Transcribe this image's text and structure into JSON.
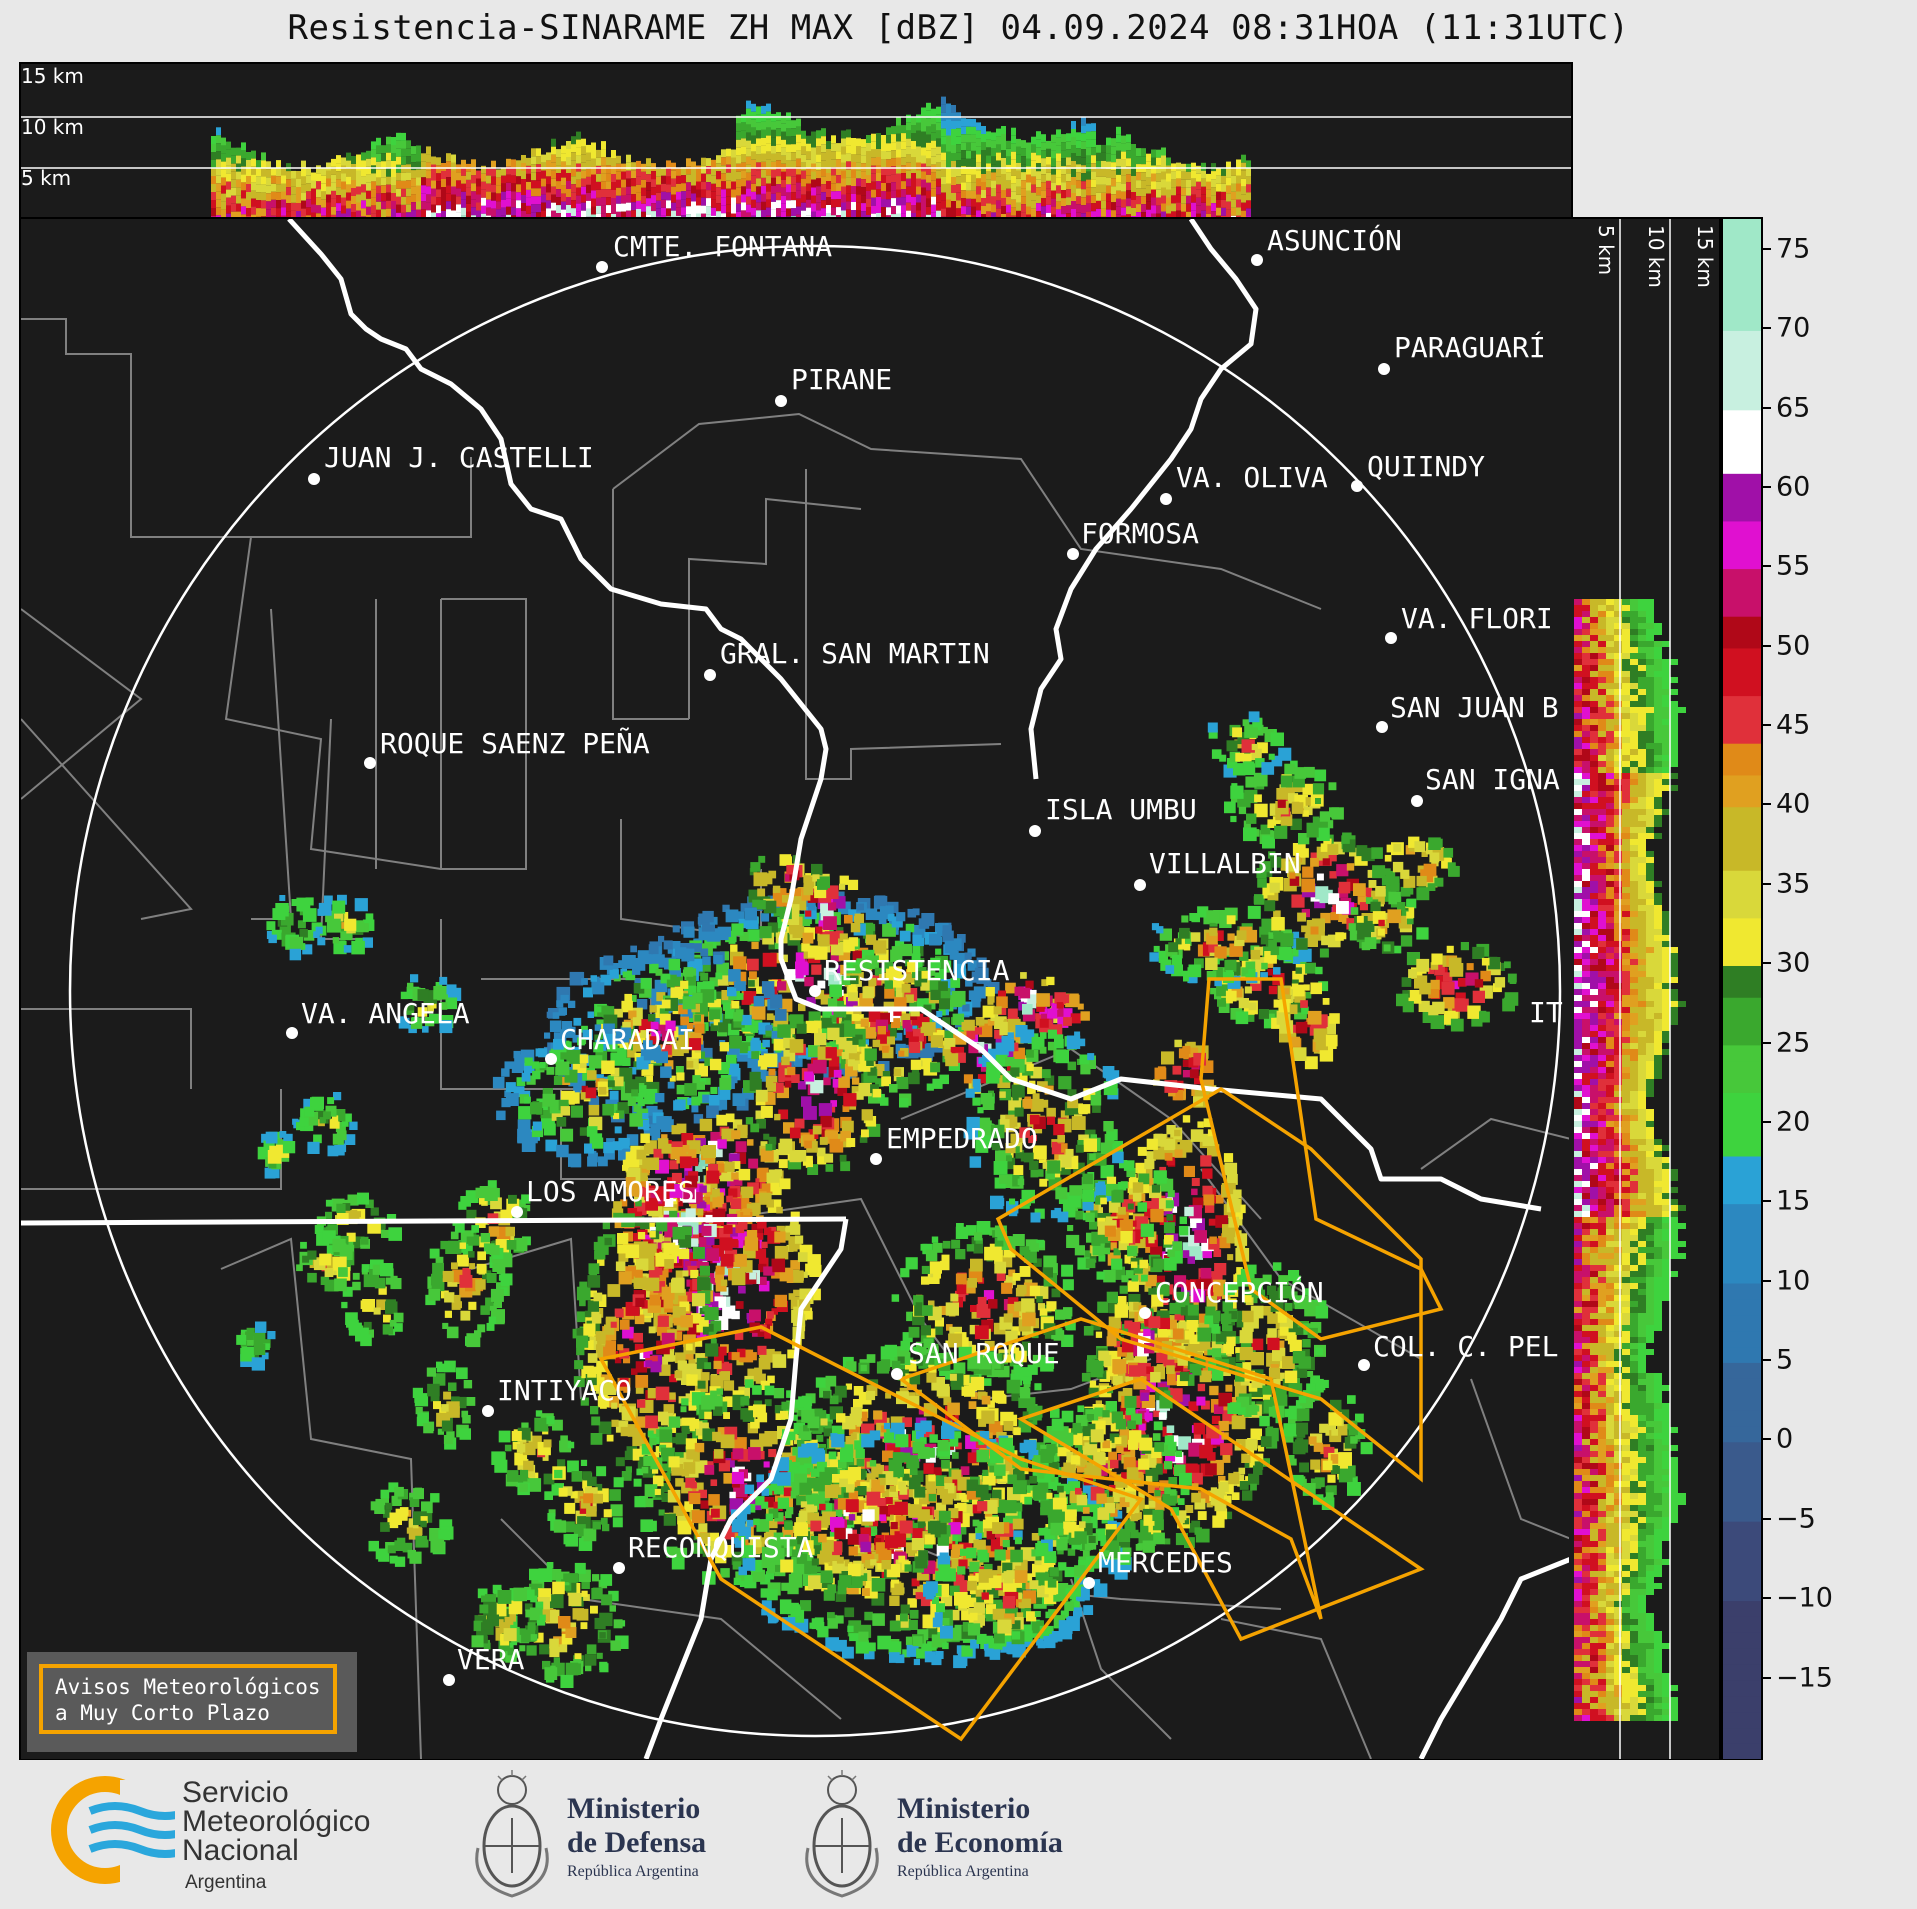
{
  "title": "Resistencia-SINARAME ZH MAX [dBZ] 04.09.2024 08:31HOA (11:31UTC)",
  "top_panel": {
    "height_labels": [
      "15 km",
      "10 km",
      "5 km"
    ]
  },
  "side_panel": {
    "height_labels": [
      "5 km",
      "10 km",
      "15 km"
    ]
  },
  "colorbar": {
    "unit": "dBZ",
    "ticks": [
      "75",
      "70",
      "65",
      "60",
      "55",
      "50",
      "45",
      "40",
      "35",
      "30",
      "25",
      "20",
      "15",
      "10",
      "5",
      "0",
      "−5",
      "−10",
      "−15"
    ],
    "range": [
      -20,
      77
    ]
  },
  "cities": [
    {
      "name": "CMTE. FONTANA"
    },
    {
      "name": "ASUNCIÓN"
    },
    {
      "name": "PARAGUARÍ"
    },
    {
      "name": "PIRANE"
    },
    {
      "name": "JUAN J. CASTELLI"
    },
    {
      "name": "VA. OLIVA"
    },
    {
      "name": "QUIINDY"
    },
    {
      "name": "FORMOSA"
    },
    {
      "name": "VA. FLORI"
    },
    {
      "name": "GRAL. SAN MARTIN"
    },
    {
      "name": "SAN JUAN B"
    },
    {
      "name": "ROQUE SAENZ PEÑA"
    },
    {
      "name": "SAN IGNA"
    },
    {
      "name": "ISLA UMBU"
    },
    {
      "name": "VILLALBIN"
    },
    {
      "name": "RESISTENCIA"
    },
    {
      "name": "IT"
    },
    {
      "name": "VA. ANGELA"
    },
    {
      "name": "CHARADAI"
    },
    {
      "name": "EMPEDRADO"
    },
    {
      "name": "LOS AMORES"
    },
    {
      "name": "CONCEPCIÓN"
    },
    {
      "name": "SAN ROQUE"
    },
    {
      "name": "COL. C. PEL"
    },
    {
      "name": "INTIYACO"
    },
    {
      "name": "RECONQUISTA"
    },
    {
      "name": "MERCEDES"
    },
    {
      "name": "VERA"
    }
  ],
  "warning_box": {
    "line1": "Avisos Meteorológicos",
    "line2": "a Muy Corto Plazo",
    "color": "#f5a300"
  },
  "footer": {
    "smn": {
      "line1": "Servicio",
      "line2": "Meteorológico",
      "line3": "Nacional",
      "line4": "Argentina"
    },
    "defensa": {
      "line1": "Ministerio",
      "line2": "de Defensa",
      "line3": "República Argentina"
    },
    "economia": {
      "line1": "Ministerio",
      "line2": "de Economía",
      "line3": "República Argentina"
    }
  },
  "colors": {
    "background": "#1b1b1b",
    "border_line": "#ffffff",
    "province_line": "#808080",
    "warning_polygon": "#f5a300",
    "smn_orange": "#f5a300",
    "smn_blue": "#2aa7dc"
  }
}
